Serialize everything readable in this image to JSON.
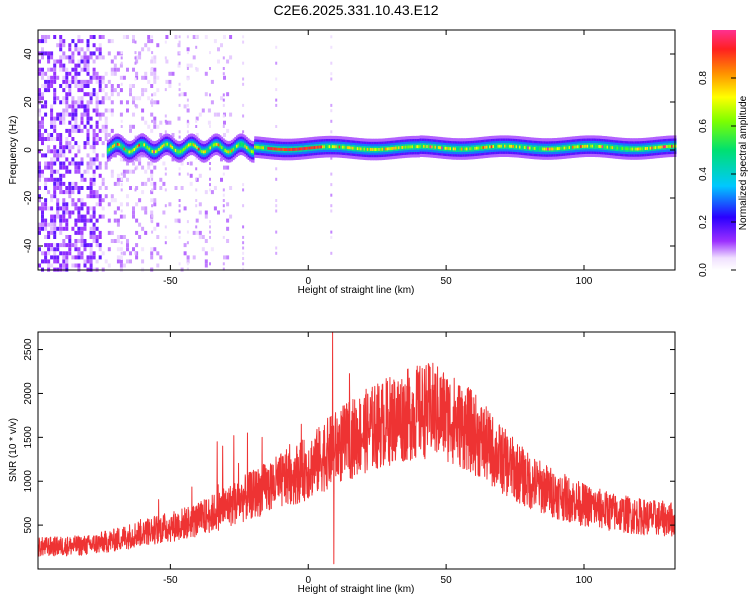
{
  "title": "C2E6.2025.331.10.43.E12",
  "chart_data": [
    {
      "type": "heatmap",
      "xlabel": "Height of straight line (km)",
      "ylabel": "Frequency (Hz)",
      "xlim": [
        -98,
        133
      ],
      "ylim": [
        -50,
        50
      ],
      "xticks": [
        -50,
        0,
        50,
        100
      ],
      "yticks": [
        -40,
        -20,
        0,
        20,
        40
      ],
      "colorbar": {
        "label": "Normalized spectral amplitude",
        "range": [
          0.0,
          1.0
        ],
        "ticks": [
          0.0,
          0.2,
          0.4,
          0.6,
          0.8
        ],
        "tick_labels": [
          "0.0",
          "0.2",
          "0.4",
          "0.6",
          "0.8"
        ]
      },
      "band": {
        "center_frequency_hz": 0,
        "onset_height_km": -73,
        "peak_amplitude_segment_km": [
          -15,
          5
        ],
        "noise_region_km": [
          -98,
          -30
        ]
      }
    },
    {
      "type": "line",
      "xlabel": "Height of straight line (km)",
      "ylabel": "SNR (10 * v/v)",
      "xlim": [
        -98,
        133
      ],
      "ylim": [
        0,
        2700
      ],
      "xticks": [
        -50,
        0,
        50,
        100
      ],
      "yticks": [
        500,
        1000,
        1500,
        2000,
        2500
      ],
      "color": "#ee3333",
      "envelope_points": [
        {
          "x": -98,
          "y": 250
        },
        {
          "x": -80,
          "y": 270
        },
        {
          "x": -70,
          "y": 330
        },
        {
          "x": -60,
          "y": 420
        },
        {
          "x": -50,
          "y": 480
        },
        {
          "x": -40,
          "y": 560
        },
        {
          "x": -30,
          "y": 700
        },
        {
          "x": -20,
          "y": 850
        },
        {
          "x": -10,
          "y": 1000
        },
        {
          "x": 0,
          "y": 1150
        },
        {
          "x": 10,
          "y": 1380
        },
        {
          "x": 20,
          "y": 1560
        },
        {
          "x": 30,
          "y": 1700
        },
        {
          "x": 40,
          "y": 1790
        },
        {
          "x": 45,
          "y": 1810
        },
        {
          "x": 50,
          "y": 1750
        },
        {
          "x": 60,
          "y": 1550
        },
        {
          "x": 70,
          "y": 1250
        },
        {
          "x": 80,
          "y": 1000
        },
        {
          "x": 90,
          "y": 850
        },
        {
          "x": 100,
          "y": 730
        },
        {
          "x": 110,
          "y": 650
        },
        {
          "x": 120,
          "y": 600
        },
        {
          "x": 133,
          "y": 560
        }
      ],
      "spikes": [
        {
          "x": 8.8,
          "y": 2700
        },
        {
          "x": 9.3,
          "y": 60
        },
        {
          "x": -33,
          "y": 1450
        },
        {
          "x": -27,
          "y": 1520
        },
        {
          "x": -22,
          "y": 1550
        },
        {
          "x": -31,
          "y": 1400
        }
      ]
    }
  ]
}
